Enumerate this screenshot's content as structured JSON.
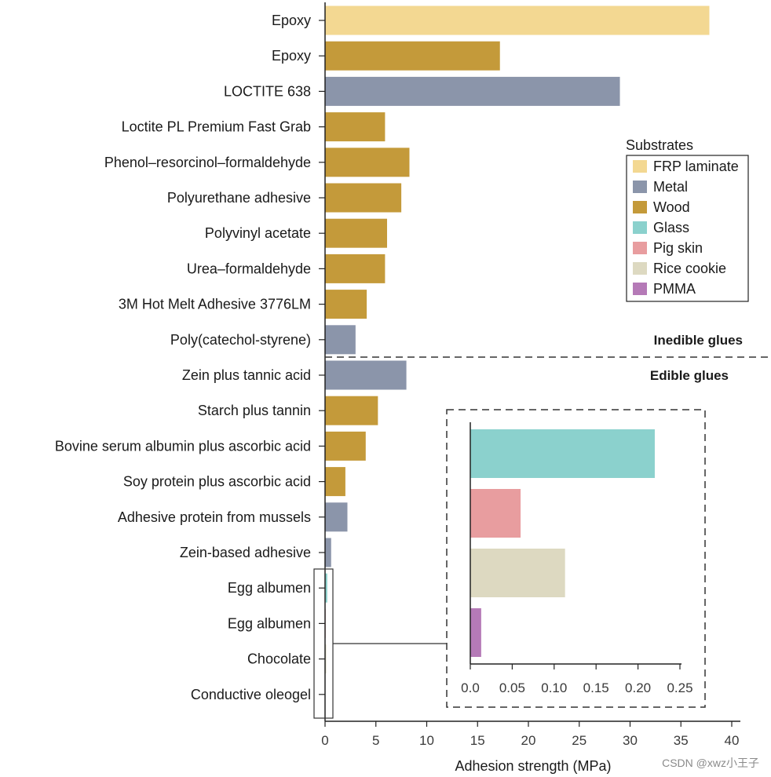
{
  "chart_data": {
    "type": "bar",
    "orientation": "horizontal",
    "xlabel": "Adhesion strength (MPa)",
    "xlim": [
      0,
      40
    ],
    "xticks": [
      0,
      5,
      10,
      15,
      20,
      25,
      30,
      35,
      40
    ],
    "colors": {
      "FRP laminate": "#f3d892",
      "Metal": "#8b95aa",
      "Wood": "#c49a3a",
      "Glass": "#8bd1cd",
      "Pig skin": "#e89d9f",
      "Rice cookie": "#ddd9c1",
      "PMMA": "#b57ab7"
    },
    "bars": [
      {
        "label": "Epoxy",
        "value": 37.8,
        "substrate": "FRP laminate"
      },
      {
        "label": "Epoxy",
        "value": 17.2,
        "substrate": "Wood"
      },
      {
        "label": "LOCTITE 638",
        "value": 29.0,
        "substrate": "Metal"
      },
      {
        "label": "Loctite PL Premium Fast Grab",
        "value": 5.9,
        "substrate": "Wood"
      },
      {
        "label": "Phenol–resorcinol–formaldehyde",
        "value": 8.3,
        "substrate": "Wood"
      },
      {
        "label": "Polyurethane adhesive",
        "value": 7.5,
        "substrate": "Wood"
      },
      {
        "label": "Polyvinyl acetate",
        "value": 6.1,
        "substrate": "Wood"
      },
      {
        "label": "Urea–formaldehyde",
        "value": 5.9,
        "substrate": "Wood"
      },
      {
        "label": "3M Hot Melt Adhesive 3776LM",
        "value": 4.1,
        "substrate": "Wood"
      },
      {
        "label": "Poly(catechol-styrene)",
        "value": 3.0,
        "substrate": "Metal"
      },
      {
        "label": "Zein plus tannic acid",
        "value": 8.0,
        "substrate": "Metal"
      },
      {
        "label": "Starch plus tannin",
        "value": 5.2,
        "substrate": "Wood"
      },
      {
        "label": "Bovine serum albumin plus ascorbic acid",
        "value": 4.0,
        "substrate": "Wood"
      },
      {
        "label": "Soy protein plus ascorbic acid",
        "value": 2.0,
        "substrate": "Wood"
      },
      {
        "label": "Adhesive protein from mussels",
        "value": 2.2,
        "substrate": "Metal"
      },
      {
        "label": "Zein-based adhesive",
        "value": 0.6,
        "substrate": "Metal"
      },
      {
        "label": "Egg albumen",
        "value": 0.22,
        "substrate": "Glass"
      },
      {
        "label": "Egg albumen",
        "value": 0.06,
        "substrate": "Pig skin"
      },
      {
        "label": "Chocolate",
        "value": 0.113,
        "substrate": "Rice cookie"
      },
      {
        "label": "Conductive oleogel",
        "value": 0.013,
        "substrate": "PMMA"
      }
    ],
    "section_labels": {
      "upper": "Inedible glues",
      "lower": "Edible glues"
    },
    "legend": {
      "title": "Substrates",
      "entries": [
        "FRP laminate",
        "Metal",
        "Wood",
        "Glass",
        "Pig skin",
        "Rice cookie",
        "PMMA"
      ],
      "placement": "right"
    },
    "inset": {
      "xlim": [
        0,
        0.25
      ],
      "xticks": [
        "0.0",
        "0.05",
        "0.10",
        "0.15",
        "0.20",
        "0.25"
      ],
      "bars": [
        {
          "value": 0.22,
          "substrate": "Glass"
        },
        {
          "value": 0.06,
          "substrate": "Pig skin"
        },
        {
          "value": 0.113,
          "substrate": "Rice cookie"
        },
        {
          "value": 0.013,
          "substrate": "PMMA"
        }
      ]
    }
  },
  "watermark": "CSDN @xwz小王子"
}
